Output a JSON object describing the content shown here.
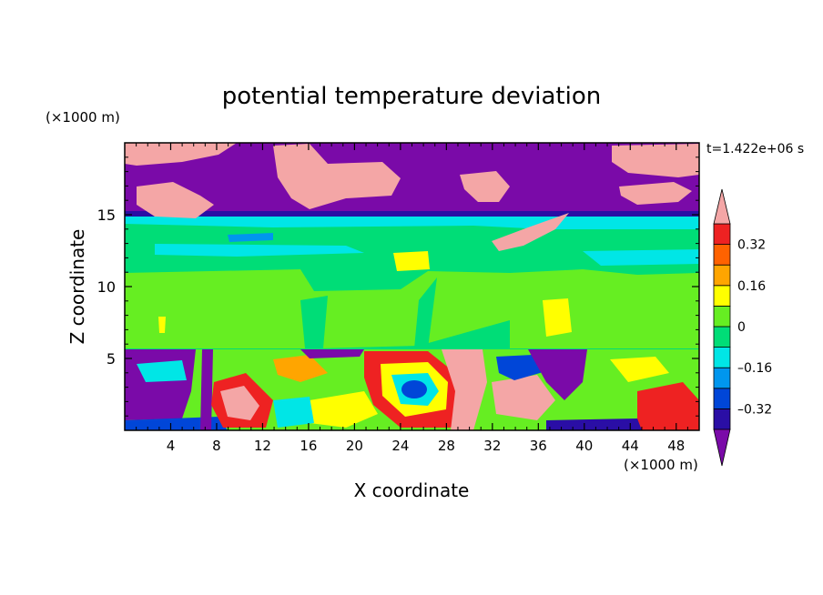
{
  "chart_data": {
    "type": "heatmap",
    "title": "potential temperature deviation",
    "xlabel": "X coordinate",
    "ylabel": "Z coordinate",
    "x_units": "(×1000 m)",
    "y_units": "(×1000 m)",
    "time_label": "t=1.422e+06 s",
    "xlim": [
      0,
      50
    ],
    "ylim": [
      0,
      20
    ],
    "x_ticks": [
      4,
      8,
      12,
      16,
      20,
      24,
      28,
      32,
      36,
      40,
      44,
      48
    ],
    "y_ticks": [
      5,
      10,
      15
    ],
    "x_tick_labels": [
      "4",
      "8",
      "12",
      "16",
      "20",
      "24",
      "28",
      "32",
      "36",
      "40",
      "44",
      "48"
    ],
    "y_tick_labels": [
      "5",
      "10",
      "15"
    ],
    "colorbar": {
      "levels": [
        -0.4,
        -0.32,
        -0.24,
        -0.16,
        -0.08,
        0,
        0.08,
        0.16,
        0.24,
        0.32,
        0.4
      ],
      "labels": [
        "0.32",
        "0.16",
        "0",
        "–0.16",
        "–0.32"
      ],
      "label_values": [
        0.32,
        0.16,
        0,
        -0.16,
        -0.32
      ],
      "colors": [
        "#7a0aa8",
        "#2a0ea5",
        "#0046d8",
        "#0096ee",
        "#00e6e6",
        "#00dd77",
        "#66ee22",
        "#ffff00",
        "#ffa500",
        "#ff6200",
        "#ee2222",
        "#f4a6a6"
      ],
      "extend": "both"
    },
    "grid": false
  }
}
